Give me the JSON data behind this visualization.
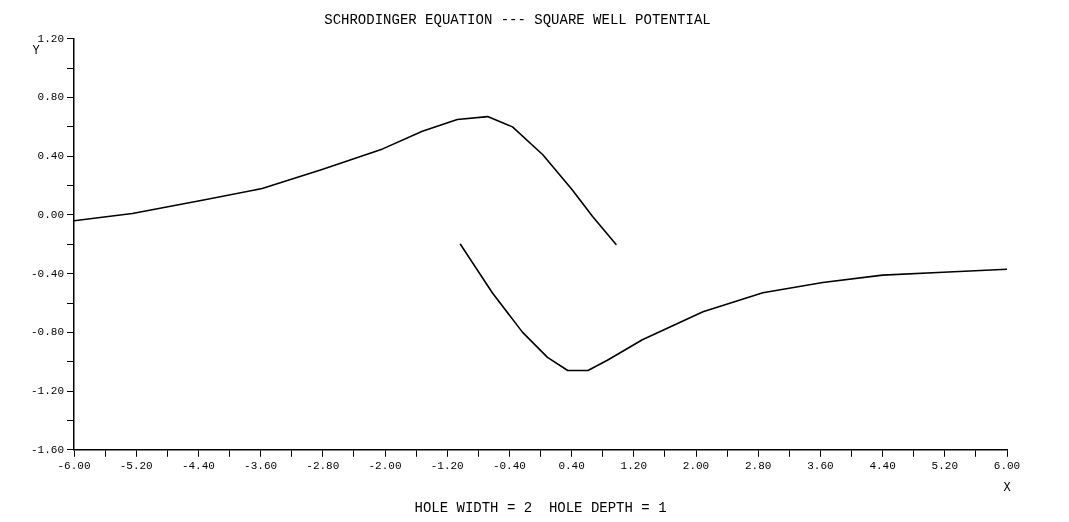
{
  "chart_data": {
    "type": "line",
    "title": "SCHRODINGER EQUATION --- SQUARE WELL POTENTIAL",
    "xlabel": "X",
    "ylabel": "Y",
    "annotations": [
      "HOLE WIDTH = 2  HOLE DEPTH = 1"
    ],
    "series": [
      {
        "color": "#000000",
        "x": [
          -6.0,
          -5.25,
          -4.35,
          -3.58,
          -2.81,
          -2.03,
          -1.52,
          -1.07,
          -0.68,
          -0.36,
          0.03,
          0.41,
          0.67,
          0.97
        ],
        "values": [
          -0.04,
          0.01,
          0.1,
          0.18,
          0.31,
          0.45,
          0.57,
          0.65,
          0.67,
          0.6,
          0.41,
          0.17,
          -0.01,
          -0.2
        ]
      },
      {
        "color": "#000000",
        "x": [
          -1.03,
          -0.62,
          -0.23,
          0.09,
          0.35,
          0.61,
          0.86,
          1.31,
          2.09,
          2.86,
          3.63,
          4.4,
          5.18,
          6.0
        ],
        "values": [
          -0.2,
          -0.53,
          -0.8,
          -0.97,
          -1.06,
          -1.06,
          -0.99,
          -0.85,
          -0.66,
          -0.53,
          -0.46,
          -0.41,
          -0.39,
          -0.37
        ]
      }
    ],
    "xlim": [
      -6,
      6
    ],
    "xticks": [
      {
        "value": -6,
        "label": "-6.00"
      },
      {
        "value": -5.6,
        "label": null
      },
      {
        "value": -5.2,
        "label": "-5.20"
      },
      {
        "value": -4.8,
        "label": null
      },
      {
        "value": -4.4,
        "label": "-4.40"
      },
      {
        "value": -4,
        "label": null
      },
      {
        "value": -3.6,
        "label": "-3.60"
      },
      {
        "value": -3.2,
        "label": null
      },
      {
        "value": -2.8,
        "label": "-2.80"
      },
      {
        "value": -2.4,
        "label": null
      },
      {
        "value": -2,
        "label": "-2.00"
      },
      {
        "value": -1.6,
        "label": null
      },
      {
        "value": -1.2,
        "label": "-1.20"
      },
      {
        "value": -0.8,
        "label": null
      },
      {
        "value": -0.4,
        "label": "-0.40"
      },
      {
        "value": 0,
        "label": null
      },
      {
        "value": 0.4,
        "label": "0.40"
      },
      {
        "value": 0.8,
        "label": null
      },
      {
        "value": 1.2,
        "label": "1.20"
      },
      {
        "value": 1.6,
        "label": null
      },
      {
        "value": 2,
        "label": "2.00"
      },
      {
        "value": 2.4,
        "label": null
      },
      {
        "value": 2.8,
        "label": "2.80"
      },
      {
        "value": 3.2,
        "label": null
      },
      {
        "value": 3.6,
        "label": "3.60"
      },
      {
        "value": 4,
        "label": null
      },
      {
        "value": 4.4,
        "label": "4.40"
      },
      {
        "value": 4.8,
        "label": null
      },
      {
        "value": 5.2,
        "label": "5.20"
      },
      {
        "value": 5.6,
        "label": null
      },
      {
        "value": 6,
        "label": "6.00"
      }
    ],
    "ylim": [
      -1.6,
      1.2
    ],
    "yticks": [
      {
        "value": -1.6,
        "label": "-1.60"
      },
      {
        "value": -1.4,
        "label": null
      },
      {
        "value": -1.2,
        "label": "-1.20"
      },
      {
        "value": -1,
        "label": null
      },
      {
        "value": -0.8,
        "label": "-0.80"
      },
      {
        "value": -0.6,
        "label": null
      },
      {
        "value": -0.4,
        "label": "-0.40"
      },
      {
        "value": -0.2,
        "label": null
      },
      {
        "value": 0,
        "label": "0.00"
      },
      {
        "value": 0.2,
        "label": null
      },
      {
        "value": 0.4,
        "label": "0.40"
      },
      {
        "value": 0.6,
        "label": null
      },
      {
        "value": 0.8,
        "label": "0.80"
      },
      {
        "value": 1,
        "label": null
      },
      {
        "value": 1.2,
        "label": "1.20"
      }
    ],
    "grid": false,
    "legend": false,
    "marker": "none",
    "line_style": "solid"
  }
}
